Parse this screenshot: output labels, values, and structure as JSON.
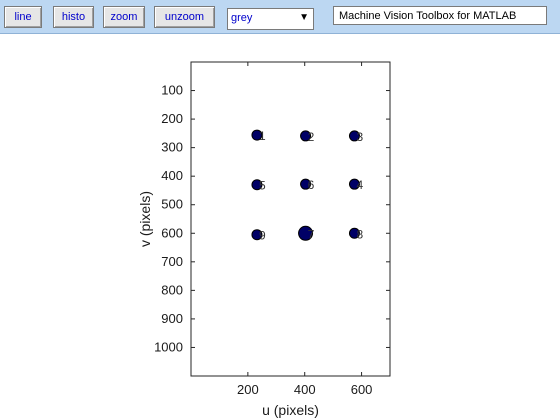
{
  "toolbar": {
    "buttons": [
      {
        "id": "line",
        "label": "line"
      },
      {
        "id": "histo",
        "label": "histo"
      },
      {
        "id": "zoom",
        "label": "zoom"
      },
      {
        "id": "unzoom",
        "label": "unzoom"
      }
    ],
    "colormap_select": {
      "value": "grey"
    },
    "title_field": {
      "value": "Machine Vision Toolbox for MATLAB"
    }
  },
  "chart_data": {
    "type": "scatter",
    "xlabel": "u (pixels)",
    "ylabel": "v (pixels)",
    "xlim": [
      0,
      700
    ],
    "ylim": [
      1100,
      0
    ],
    "y_reversed": true,
    "xticks": [
      200,
      400,
      600
    ],
    "yticks": [
      100,
      200,
      300,
      400,
      500,
      600,
      700,
      800,
      900,
      1000
    ],
    "grid": false,
    "marker_color": "#000066",
    "points": [
      {
        "label": "1",
        "u": 232,
        "v": 256,
        "size": "normal"
      },
      {
        "label": "2",
        "u": 403,
        "v": 259,
        "size": "normal"
      },
      {
        "label": "3",
        "u": 575,
        "v": 259,
        "size": "normal"
      },
      {
        "label": "4",
        "u": 575,
        "v": 428,
        "size": "normal"
      },
      {
        "label": "5",
        "u": 232,
        "v": 430,
        "size": "normal"
      },
      {
        "label": "6",
        "u": 403,
        "v": 428,
        "size": "normal"
      },
      {
        "label": "7",
        "u": 403,
        "v": 600,
        "size": "large"
      },
      {
        "label": "8",
        "u": 575,
        "v": 600,
        "size": "normal"
      },
      {
        "label": "9",
        "u": 232,
        "v": 605,
        "size": "normal"
      }
    ]
  }
}
